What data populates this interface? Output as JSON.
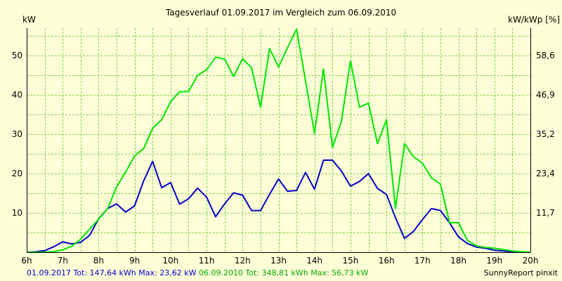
{
  "colors": {
    "background": "#ffffd7",
    "grid": "#7fd25a",
    "series_2017": "#0000c8",
    "series_2010": "#00e600",
    "footer_2017_text": "#0000c8",
    "footer_2010_text": "#00aa00"
  },
  "footer": {
    "summary_2017": "01.09.2017 Tot: 147,64 kWh Max: 23,62 kW",
    "summary_2010": "06.09.2010 Tot: 348,81 kWh Max: 56,73 kW",
    "credit": "SunnyReport pinxit"
  },
  "chart_data": {
    "type": "line",
    "title": "Tagesverlauf 01.09.2017 im Vergleich zum 06.09.2010",
    "ylabel": "kW",
    "y2label": "kW/kWp [%]",
    "xlim": [
      6,
      20
    ],
    "ylim": [
      0,
      57
    ],
    "x_ticks": [
      {
        "x": 6,
        "label": "6h"
      },
      {
        "x": 7,
        "label": "7h"
      },
      {
        "x": 8,
        "label": "8h"
      },
      {
        "x": 9,
        "label": "9h"
      },
      {
        "x": 10,
        "label": "10h"
      },
      {
        "x": 11,
        "label": "11h"
      },
      {
        "x": 12,
        "label": "12h"
      },
      {
        "x": 13,
        "label": "13h"
      },
      {
        "x": 14,
        "label": "14h"
      },
      {
        "x": 15,
        "label": "15h"
      },
      {
        "x": 16,
        "label": "16h"
      },
      {
        "x": 17,
        "label": "17h"
      },
      {
        "x": 18,
        "label": "18h"
      },
      {
        "x": 19,
        "label": "19h"
      },
      {
        "x": 20,
        "label": "20h"
      }
    ],
    "y_ticks": [
      {
        "y": 10,
        "label": "10"
      },
      {
        "y": 20,
        "label": "20"
      },
      {
        "y": 30,
        "label": "30"
      },
      {
        "y": 40,
        "label": "40"
      },
      {
        "y": 50,
        "label": "50"
      }
    ],
    "y2_ticks": [
      {
        "y": 10,
        "label": "11,7"
      },
      {
        "y": 20,
        "label": "23,4"
      },
      {
        "y": 30,
        "label": "35,2"
      },
      {
        "y": 40,
        "label": "46,9"
      },
      {
        "y": 50,
        "label": "58,6"
      }
    ],
    "grid": true,
    "x": [
      6.0,
      6.25,
      6.5,
      6.75,
      7.0,
      7.25,
      7.5,
      7.75,
      8.0,
      8.25,
      8.5,
      8.75,
      9.0,
      9.25,
      9.5,
      9.75,
      10.0,
      10.25,
      10.5,
      10.75,
      11.0,
      11.25,
      11.5,
      11.75,
      12.0,
      12.25,
      12.5,
      12.75,
      13.0,
      13.25,
      13.5,
      13.75,
      14.0,
      14.25,
      14.5,
      14.75,
      15.0,
      15.25,
      15.5,
      15.75,
      16.0,
      16.25,
      16.5,
      16.75,
      17.0,
      17.25,
      17.5,
      17.75,
      18.0,
      18.25,
      18.5,
      18.75,
      19.0,
      19.25,
      19.5,
      19.75,
      20.0
    ],
    "series": [
      {
        "values": [
          0.0,
          0.1,
          0.4,
          1.4,
          2.6,
          2.1,
          2.5,
          4.3,
          8.5,
          11.1,
          12.3,
          10.2,
          11.8,
          18.1,
          23.1,
          16.4,
          17.7,
          12.2,
          13.6,
          16.3,
          14.0,
          9.0,
          12.3,
          15.1,
          14.5,
          10.6,
          10.6,
          14.7,
          18.6,
          15.5,
          15.7,
          20.3,
          16.0,
          23.4,
          23.4,
          20.6,
          16.8,
          18.0,
          20.0,
          16.2,
          14.7,
          8.8,
          3.5,
          5.3,
          8.3,
          11.1,
          10.6,
          7.5,
          3.9,
          2.2,
          1.3,
          1.0,
          0.5,
          0.3,
          0.1,
          0.0,
          0.0
        ],
        "color": "#0000c8"
      },
      {
        "values": [
          0.0,
          0.0,
          0.0,
          0.1,
          0.6,
          1.5,
          3.3,
          5.9,
          8.4,
          11.1,
          16.6,
          20.4,
          24.5,
          26.3,
          31.5,
          33.7,
          38.3,
          40.8,
          40.9,
          45.0,
          46.4,
          49.6,
          49.1,
          44.7,
          49.2,
          46.9,
          36.9,
          51.8,
          47.1,
          52.0,
          56.7,
          43.6,
          30.2,
          46.6,
          26.6,
          33.4,
          48.7,
          36.9,
          37.9,
          27.6,
          33.7,
          11.1,
          27.6,
          24.3,
          22.6,
          18.9,
          17.3,
          7.5,
          7.5,
          3.0,
          1.6,
          1.2,
          1.0,
          0.7,
          0.3,
          0.1,
          0.0
        ],
        "color": "#00e600"
      }
    ]
  }
}
